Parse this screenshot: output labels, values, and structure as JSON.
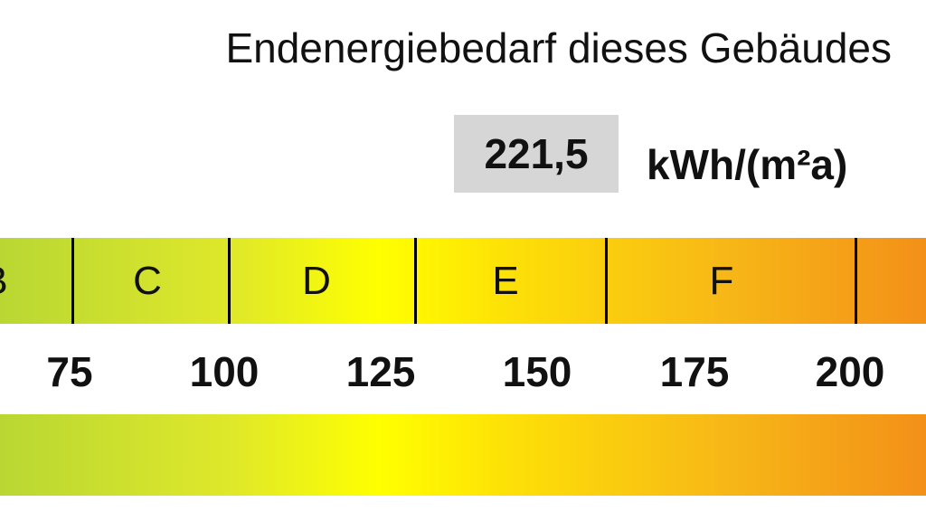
{
  "title": "Endenergiebedarf dieses Gebäudes",
  "value": "221,5",
  "unit": "kWh/(m²a)",
  "scale": {
    "classes": [
      "B",
      "C",
      "D",
      "E",
      "F"
    ],
    "ticks": [
      "75",
      "100",
      "125",
      "150",
      "175",
      "200"
    ],
    "colors": {
      "green": "#b9d733",
      "yellow": "#ffff00",
      "orange": "#f39018"
    }
  }
}
